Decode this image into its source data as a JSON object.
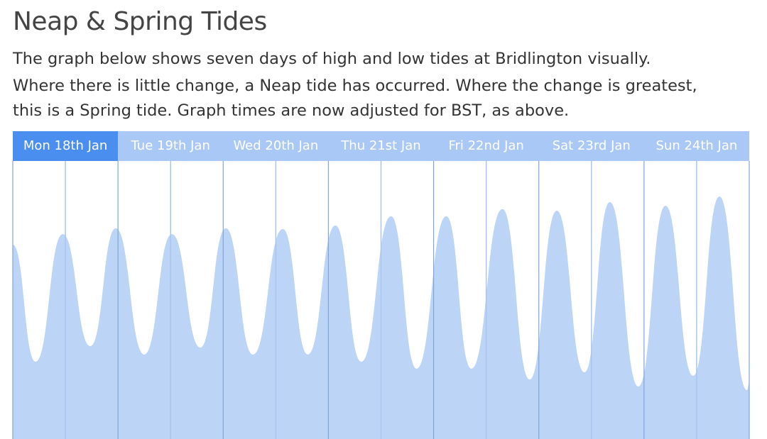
{
  "header": {
    "title": "Neap & Spring Tides"
  },
  "intro": [
    "The graph below shows seven days of high and low tides at Bridlington visually.",
    "Where there is little change, a Neap tide has occurred. Where the change is greatest,",
    "this is a Spring tide. Graph times are now adjusted for BST, as above."
  ],
  "tabs": [
    "Mon 18th Jan",
    "Tue 19th Jan",
    "Wed 20th Jan",
    "Thu 21st Jan",
    "Fri 22nd Jan",
    "Sat 23rd Jan",
    "Sun 24th Jan"
  ],
  "chart_data": {
    "type": "area",
    "color": "#bcd4f6",
    "x": [
      0,
      5.2,
      11.4,
      17.7,
      23.5,
      30.0,
      36.3,
      42.8,
      48.6,
      54.8,
      61.6,
      67.3,
      73.6,
      79.5,
      86.3,
      92.1,
      98.9,
      104.6,
      111.7,
      117.9,
      124.1,
      130.4,
      136.2,
      142.7,
      148.9,
      155.2,
      161.2,
      167.5,
      168
    ],
    "values": [
      69.9,
      27.8,
      73.7,
      33.4,
      75.8,
      30.4,
      73.7,
      32.9,
      75.8,
      30.4,
      75.5,
      30.4,
      76.8,
      27.8,
      80.1,
      25.3,
      80.1,
      25.3,
      82.7,
      21.4,
      82.1,
      24.0,
      85.2,
      18.9,
      83.9,
      22.7,
      87.2,
      17.6,
      20.2
    ],
    "xlim": [
      0,
      168
    ],
    "ylim": [
      0,
      100
    ]
  }
}
